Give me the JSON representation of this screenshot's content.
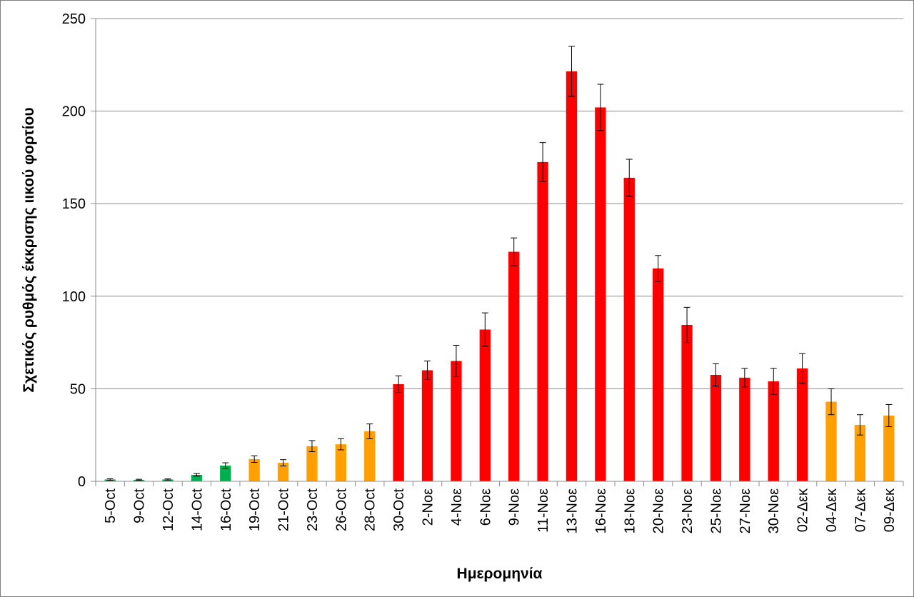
{
  "chart_data": {
    "type": "bar",
    "title": "",
    "xlabel": "Ημερομηνία",
    "ylabel": "Σχετικός ρυθμός έκκρισης ιικού φορτίου",
    "ylim": [
      0,
      250
    ],
    "yticks": [
      0,
      50,
      100,
      150,
      200,
      250
    ],
    "grid": true,
    "legend": "none",
    "categories": [
      "5-Oct",
      "9-Oct",
      "12-Oct",
      "14-Oct",
      "16-Oct",
      "19-Oct",
      "21-Oct",
      "23-Oct",
      "26-Oct",
      "28-Oct",
      "30-Oct",
      "2-Νοε",
      "4-Νοε",
      "6-Νοε",
      "9-Νοε",
      "11-Νοε",
      "13-Νοε",
      "16-Νοε",
      "18-Νοε",
      "20-Νοε",
      "23-Νοε",
      "25-Νοε",
      "27-Νοε",
      "30-Νοε",
      "02-Δεκ",
      "04-Δεκ",
      "07-Δεκ",
      "09-Δεκ"
    ],
    "values": [
      1,
      0.8,
      1,
      3.5,
      8.5,
      12,
      10,
      19,
      20,
      27,
      52.5,
      60,
      65,
      82,
      124,
      172.5,
      221.5,
      202,
      164,
      115,
      84.5,
      57.5,
      56,
      54,
      61,
      43,
      30.5,
      35.5
    ],
    "error": [
      0.4,
      0.3,
      0.3,
      0.7,
      1.5,
      1.8,
      1.7,
      3,
      3,
      4,
      4.5,
      5,
      8.5,
      9,
      7.5,
      10.5,
      13.5,
      12.5,
      10,
      7,
      9.5,
      6,
      5,
      7,
      8,
      7,
      5.5,
      6
    ],
    "colors": [
      "#00b050",
      "#00b050",
      "#00b050",
      "#00b050",
      "#00b050",
      "#ffa000",
      "#ffa000",
      "#ffa000",
      "#ffa000",
      "#ffa000",
      "#ff0000",
      "#ff0000",
      "#ff0000",
      "#ff0000",
      "#ff0000",
      "#ff0000",
      "#ff0000",
      "#ff0000",
      "#ff0000",
      "#ff0000",
      "#ff0000",
      "#ff0000",
      "#ff0000",
      "#ff0000",
      "#ff0000",
      "#ffa000",
      "#ffa000",
      "#ffa000"
    ]
  }
}
